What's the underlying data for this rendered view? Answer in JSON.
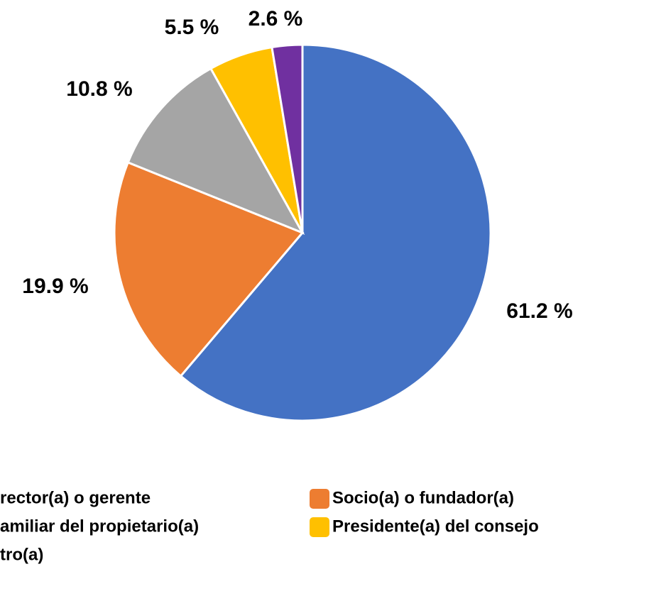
{
  "chart_data": {
    "type": "pie",
    "categories": [
      "rector(a) o gerente",
      "Socio(a) o fundador(a)",
      "amiliar del propietario(a)",
      "Presidente(a) del consejo",
      "tro(a)"
    ],
    "values": [
      61.2,
      19.9,
      10.8,
      5.5,
      2.6
    ],
    "value_labels": [
      "61.2 %",
      "19.9 %",
      "10.8 %",
      "5.5 %",
      "2.6 %"
    ],
    "colors": [
      "#4472c4",
      "#ed7d31",
      "#a5a5a5",
      "#ffc000",
      "#7030a0"
    ]
  }
}
